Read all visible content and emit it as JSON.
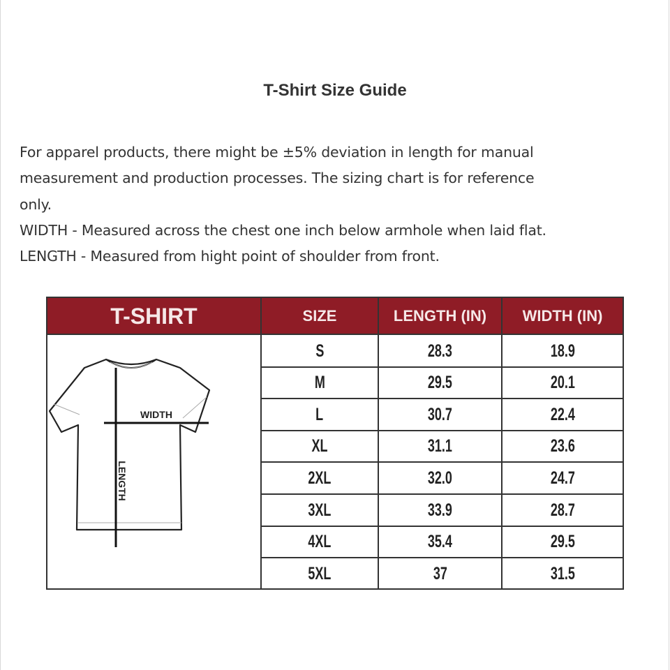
{
  "title": "T-Shirt Size Guide",
  "description_lines": [
    "For apparel products, there might be ±5% deviation in length for manual",
    "measurement and production processes. The sizing chart is for reference",
    "only.",
    "WIDTH - Measured across the chest one inch below armhole when laid flat.",
    "LENGTH - Measured from hight point of shoulder from front."
  ],
  "size_chart": {
    "header_color": "#8f1c26",
    "product_label": "T-SHIRT",
    "columns": [
      "SIZE",
      "LENGTH (IN)",
      "WIDTH (IN)"
    ],
    "diagram_labels": {
      "width": "WIDTH",
      "length": "LENGTH"
    },
    "rows": [
      {
        "size": "S",
        "length": "28.3",
        "width": "18.9"
      },
      {
        "size": "M",
        "length": "29.5",
        "width": "20.1"
      },
      {
        "size": "L",
        "length": "30.7",
        "width": "22.4"
      },
      {
        "size": "XL",
        "length": "31.1",
        "width": "23.6"
      },
      {
        "size": "2XL",
        "length": "32.0",
        "width": "24.7"
      },
      {
        "size": "3XL",
        "length": "33.9",
        "width": "28.7"
      },
      {
        "size": "4XL",
        "length": "35.4",
        "width": "29.5"
      },
      {
        "size": "5XL",
        "length": "37",
        "width": "31.5"
      }
    ]
  }
}
